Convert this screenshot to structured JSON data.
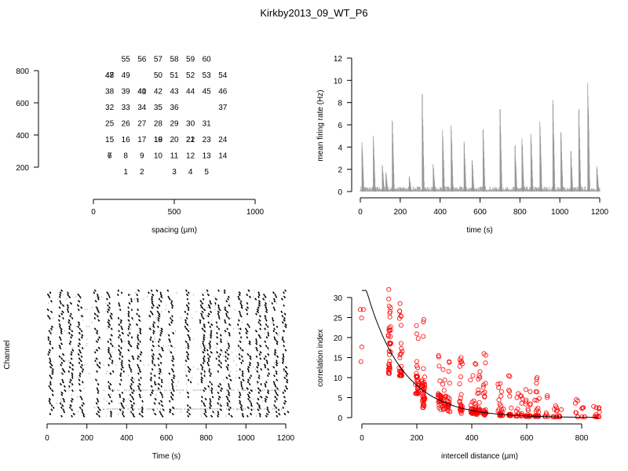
{
  "title": "Kirkby2013_09_WT_P6",
  "chart_data": [
    {
      "type": "scatter",
      "subtype": "electrode-layout",
      "xlabel": "spacing (µm)",
      "ylabel": "",
      "xlim": [
        0,
        1000
      ],
      "ylim": [
        200,
        800
      ],
      "xticks": [
        "0",
        "500",
        "1000"
      ],
      "yticks": [
        "200",
        "400",
        "600",
        "800"
      ],
      "points": [
        {
          "label": "55",
          "x": 200,
          "y": 875
        },
        {
          "label": "56",
          "x": 300,
          "y": 875
        },
        {
          "label": "57",
          "x": 400,
          "y": 875
        },
        {
          "label": "58",
          "x": 500,
          "y": 875
        },
        {
          "label": "59",
          "x": 600,
          "y": 875
        },
        {
          "label": "60",
          "x": 700,
          "y": 875
        },
        {
          "label": "47",
          "x": 100,
          "y": 775
        },
        {
          "label": "48",
          "x": 100,
          "y": 775
        },
        {
          "label": "49",
          "x": 200,
          "y": 775
        },
        {
          "label": "50",
          "x": 400,
          "y": 775
        },
        {
          "label": "51",
          "x": 500,
          "y": 775
        },
        {
          "label": "52",
          "x": 600,
          "y": 775
        },
        {
          "label": "53",
          "x": 700,
          "y": 775
        },
        {
          "label": "54",
          "x": 800,
          "y": 775
        },
        {
          "label": "38",
          "x": 100,
          "y": 675
        },
        {
          "label": "39",
          "x": 200,
          "y": 675
        },
        {
          "label": "40",
          "x": 300,
          "y": 675
        },
        {
          "label": "41",
          "x": 300,
          "y": 675
        },
        {
          "label": "42",
          "x": 400,
          "y": 675
        },
        {
          "label": "43",
          "x": 500,
          "y": 675
        },
        {
          "label": "44",
          "x": 600,
          "y": 675
        },
        {
          "label": "45",
          "x": 700,
          "y": 675
        },
        {
          "label": "46",
          "x": 800,
          "y": 675
        },
        {
          "label": "32",
          "x": 100,
          "y": 575
        },
        {
          "label": "33",
          "x": 200,
          "y": 575
        },
        {
          "label": "34",
          "x": 300,
          "y": 575
        },
        {
          "label": "35",
          "x": 400,
          "y": 575
        },
        {
          "label": "36",
          "x": 500,
          "y": 575
        },
        {
          "label": "37",
          "x": 800,
          "y": 575
        },
        {
          "label": "25",
          "x": 100,
          "y": 475
        },
        {
          "label": "26",
          "x": 200,
          "y": 475
        },
        {
          "label": "27",
          "x": 300,
          "y": 475
        },
        {
          "label": "28",
          "x": 400,
          "y": 475
        },
        {
          "label": "29",
          "x": 500,
          "y": 475
        },
        {
          "label": "30",
          "x": 600,
          "y": 475
        },
        {
          "label": "31",
          "x": 700,
          "y": 475
        },
        {
          "label": "15",
          "x": 100,
          "y": 375
        },
        {
          "label": "16",
          "x": 200,
          "y": 375
        },
        {
          "label": "17",
          "x": 300,
          "y": 375
        },
        {
          "label": "18",
          "x": 400,
          "y": 375
        },
        {
          "label": "19",
          "x": 400,
          "y": 375
        },
        {
          "label": "20",
          "x": 500,
          "y": 375
        },
        {
          "label": "21",
          "x": 600,
          "y": 375
        },
        {
          "label": "22",
          "x": 600,
          "y": 375
        },
        {
          "label": "23",
          "x": 700,
          "y": 375
        },
        {
          "label": "24",
          "x": 800,
          "y": 375
        },
        {
          "label": "6",
          "x": 100,
          "y": 275
        },
        {
          "label": "7",
          "x": 100,
          "y": 275
        },
        {
          "label": "8",
          "x": 200,
          "y": 275
        },
        {
          "label": "9",
          "x": 300,
          "y": 275
        },
        {
          "label": "10",
          "x": 400,
          "y": 275
        },
        {
          "label": "11",
          "x": 500,
          "y": 275
        },
        {
          "label": "12",
          "x": 600,
          "y": 275
        },
        {
          "label": "13",
          "x": 700,
          "y": 275
        },
        {
          "label": "14",
          "x": 800,
          "y": 275
        },
        {
          "label": "1",
          "x": 200,
          "y": 175
        },
        {
          "label": "2",
          "x": 300,
          "y": 175
        },
        {
          "label": "3",
          "x": 500,
          "y": 175
        },
        {
          "label": "4",
          "x": 600,
          "y": 175
        },
        {
          "label": "5",
          "x": 700,
          "y": 175
        }
      ]
    },
    {
      "type": "line",
      "subtype": "firing-rate-spikes",
      "xlabel": "time (s)",
      "ylabel": "mean firing rate (Hz)",
      "xlim": [
        0,
        1200
      ],
      "ylim": [
        0,
        12
      ],
      "xticks": [
        "0",
        "200",
        "400",
        "600",
        "800",
        "1000",
        "1200"
      ],
      "yticks": [
        "0",
        "2",
        "4",
        "6",
        "8",
        "10",
        "12"
      ],
      "color": "#999999",
      "bursts": [
        {
          "t": 8,
          "peak": 5.2
        },
        {
          "t": 65,
          "peak": 5.9
        },
        {
          "t": 110,
          "peak": 2.8
        },
        {
          "t": 128,
          "peak": 2.0
        },
        {
          "t": 160,
          "peak": 7.5
        },
        {
          "t": 245,
          "peak": 1.6
        },
        {
          "t": 310,
          "peak": 10.2
        },
        {
          "t": 365,
          "peak": 2.9
        },
        {
          "t": 412,
          "peak": 6.5
        },
        {
          "t": 455,
          "peak": 7.0
        },
        {
          "t": 520,
          "peak": 5.3
        },
        {
          "t": 560,
          "peak": 3.3
        },
        {
          "t": 615,
          "peak": 6.6
        },
        {
          "t": 700,
          "peak": 8.7
        },
        {
          "t": 775,
          "peak": 4.8
        },
        {
          "t": 810,
          "peak": 5.6
        },
        {
          "t": 855,
          "peak": 6.1
        },
        {
          "t": 900,
          "peak": 7.4
        },
        {
          "t": 965,
          "peak": 9.7
        },
        {
          "t": 1005,
          "peak": 6.3
        },
        {
          "t": 1055,
          "peak": 4.3
        },
        {
          "t": 1095,
          "peak": 8.6
        },
        {
          "t": 1140,
          "peak": 11.5
        },
        {
          "t": 1185,
          "peak": 2.7
        }
      ]
    },
    {
      "type": "scatter",
      "subtype": "spike-raster",
      "xlabel": "Time (s)",
      "ylabel": "Channel",
      "xlim": [
        0,
        1200
      ],
      "xticks": [
        "0",
        "200",
        "400",
        "600",
        "800",
        "1000",
        "1200"
      ],
      "burst_times": [
        8,
        65,
        110,
        160,
        245,
        310,
        365,
        412,
        455,
        520,
        560,
        615,
        700,
        775,
        810,
        855,
        900,
        965,
        1005,
        1055,
        1095,
        1140,
        1185
      ],
      "color": "#000000"
    },
    {
      "type": "scatter",
      "subtype": "correlation-vs-distance",
      "xlabel": "intercell distance (µm)",
      "ylabel": "correlation index",
      "xlim": [
        0,
        860
      ],
      "ylim": [
        0,
        32
      ],
      "xticks": [
        "0",
        "200",
        "400",
        "600",
        "800"
      ],
      "yticks": [
        "0",
        "5",
        "10",
        "15",
        "20",
        "25",
        "30"
      ],
      "marker_color": "#ff0000",
      "fit_color": "#000000",
      "fit": {
        "a": 36.0,
        "b": 0.0075
      },
      "columns": [
        {
          "x": 0,
          "min": 14,
          "max": 27
        },
        {
          "x": 100,
          "min": 11,
          "max": 32
        },
        {
          "x": 141,
          "min": 10.5,
          "max": 28.5
        },
        {
          "x": 200,
          "min": 6,
          "max": 23
        },
        {
          "x": 224,
          "min": 2.5,
          "max": 24.5
        },
        {
          "x": 283,
          "min": 2,
          "max": 15.5
        },
        {
          "x": 300,
          "min": 2,
          "max": 12
        },
        {
          "x": 316,
          "min": 1.5,
          "max": 14
        },
        {
          "x": 361,
          "min": 1,
          "max": 15
        },
        {
          "x": 400,
          "min": 1,
          "max": 10.5
        },
        {
          "x": 412,
          "min": 0.8,
          "max": 13.5
        },
        {
          "x": 424,
          "min": 0.8,
          "max": 11.5
        },
        {
          "x": 447,
          "min": 0.6,
          "max": 16
        },
        {
          "x": 500,
          "min": 0.5,
          "max": 8.5
        },
        {
          "x": 510,
          "min": 0.5,
          "max": 6.5
        },
        {
          "x": 539,
          "min": 0.5,
          "max": 10.5
        },
        {
          "x": 566,
          "min": 0.4,
          "max": 6
        },
        {
          "x": 583,
          "min": 0.4,
          "max": 5.5
        },
        {
          "x": 600,
          "min": 0.3,
          "max": 7
        },
        {
          "x": 608,
          "min": 0.3,
          "max": 6.5
        },
        {
          "x": 632,
          "min": 0.3,
          "max": 6.5
        },
        {
          "x": 640,
          "min": 0.3,
          "max": 10
        },
        {
          "x": 671,
          "min": 0.3,
          "max": 5.5
        },
        {
          "x": 700,
          "min": 0.2,
          "max": 3
        },
        {
          "x": 707,
          "min": 0.2,
          "max": 2.5
        },
        {
          "x": 721,
          "min": 0.2,
          "max": 2
        },
        {
          "x": 781,
          "min": 0.2,
          "max": 4.5
        },
        {
          "x": 806,
          "min": 0.2,
          "max": 2.5
        },
        {
          "x": 849,
          "min": 0.2,
          "max": 2.8
        },
        {
          "x": 860,
          "min": 0.2,
          "max": 2.5
        }
      ]
    }
  ]
}
